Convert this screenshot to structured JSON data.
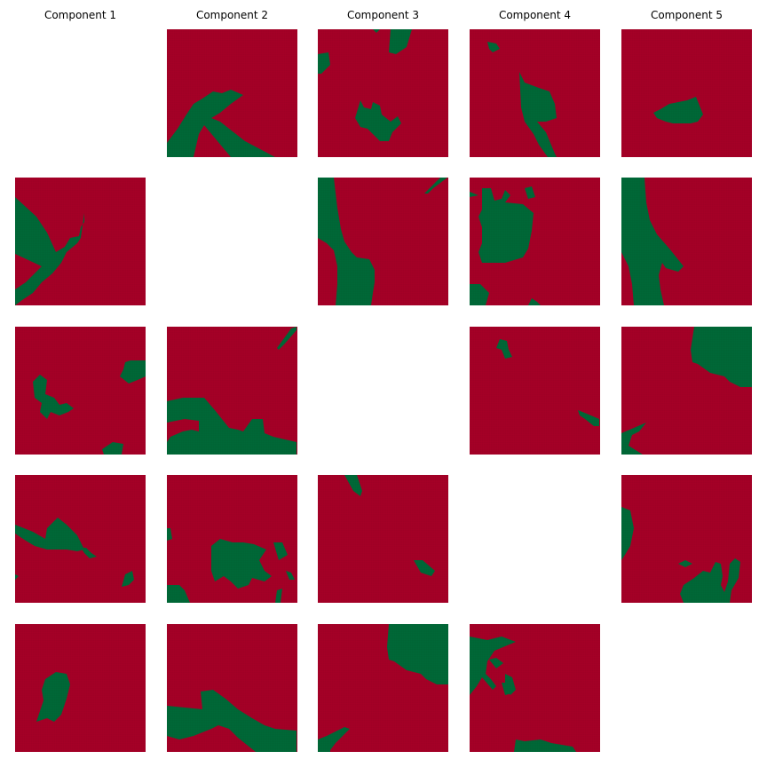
{
  "colors": {
    "red": "#a50026",
    "green": "#006837",
    "background": "#ffffff"
  },
  "chart_data": {
    "type": "heatmap",
    "layout": "5x5 grid of binary maps; diagonal cells empty",
    "column_titles": [
      "Component 1",
      "Component 2",
      "Component 3",
      "Component 4",
      "Component 5"
    ],
    "legend": null,
    "grid": false,
    "cells": [
      {
        "row": 1,
        "col": 1,
        "empty": true
      },
      {
        "row": 1,
        "col": 2,
        "green_fraction": 0.16
      },
      {
        "row": 1,
        "col": 3,
        "green_fraction": 0.1
      },
      {
        "row": 1,
        "col": 4,
        "green_fraction": 0.1
      },
      {
        "row": 1,
        "col": 5,
        "green_fraction": 0.06
      },
      {
        "row": 2,
        "col": 1,
        "green_fraction": 0.16
      },
      {
        "row": 2,
        "col": 2,
        "empty": true
      },
      {
        "row": 2,
        "col": 3,
        "green_fraction": 0.22
      },
      {
        "row": 2,
        "col": 4,
        "green_fraction": 0.18
      },
      {
        "row": 2,
        "col": 5,
        "green_fraction": 0.2
      },
      {
        "row": 3,
        "col": 1,
        "green_fraction": 0.08
      },
      {
        "row": 3,
        "col": 2,
        "green_fraction": 0.16
      },
      {
        "row": 3,
        "col": 3,
        "empty": true
      },
      {
        "row": 3,
        "col": 4,
        "green_fraction": 0.04
      },
      {
        "row": 3,
        "col": 5,
        "green_fraction": 0.2
      },
      {
        "row": 4,
        "col": 1,
        "green_fraction": 0.1
      },
      {
        "row": 4,
        "col": 2,
        "green_fraction": 0.14
      },
      {
        "row": 4,
        "col": 3,
        "green_fraction": 0.04
      },
      {
        "row": 4,
        "col": 4,
        "empty": true
      },
      {
        "row": 4,
        "col": 5,
        "green_fraction": 0.1
      },
      {
        "row": 5,
        "col": 1,
        "green_fraction": 0.05
      },
      {
        "row": 5,
        "col": 2,
        "green_fraction": 0.2
      },
      {
        "row": 5,
        "col": 3,
        "green_fraction": 0.2
      },
      {
        "row": 5,
        "col": 4,
        "green_fraction": 0.12
      },
      {
        "row": 5,
        "col": 5,
        "empty": true
      }
    ]
  }
}
